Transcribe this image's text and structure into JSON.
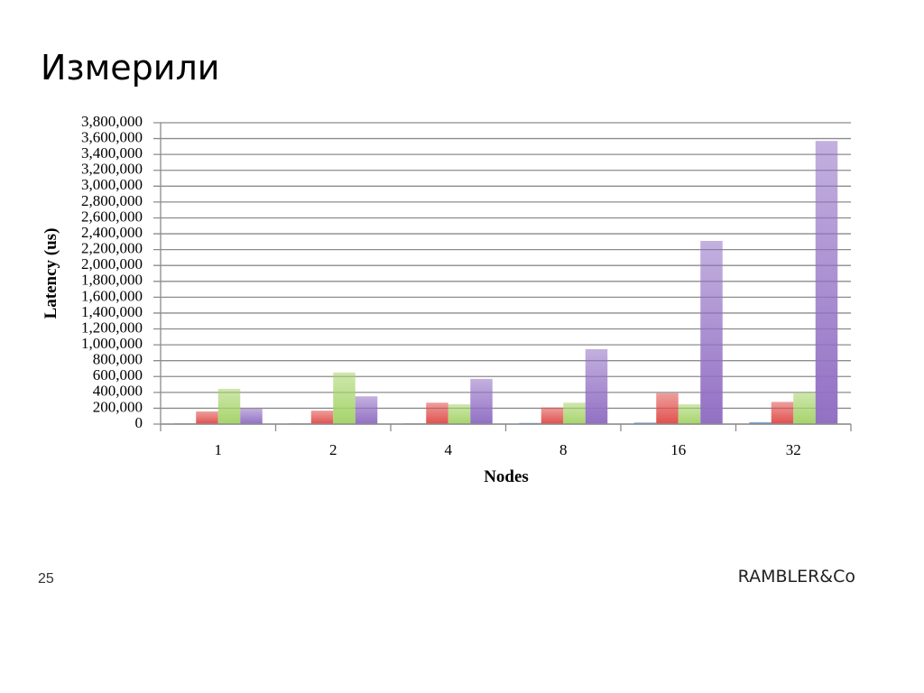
{
  "slide": {
    "title": "Измерили",
    "page_number": "25",
    "logo": "RAMBLER&Co"
  },
  "chart_data": {
    "type": "bar",
    "x_label": "Nodes",
    "y_label": "Latency (us)",
    "categories": [
      "1",
      "2",
      "4",
      "8",
      "16",
      "32"
    ],
    "series": [
      {
        "color": "#4f81bd",
        "values": [
          10000,
          10000,
          10000,
          15000,
          20000,
          25000
        ]
      },
      {
        "color": "#e0504d",
        "values": [
          160000,
          170000,
          270000,
          210000,
          390000,
          280000
        ]
      },
      {
        "color": "#a6d46a",
        "values": [
          445000,
          650000,
          250000,
          270000,
          250000,
          400000
        ]
      },
      {
        "color": "#9270c4",
        "values": [
          195000,
          350000,
          570000,
          945000,
          2310000,
          3570000
        ]
      }
    ],
    "ylim": [
      0,
      3800000
    ],
    "yticks": [
      0,
      {
        "value": 200000,
        "label": "200,000"
      },
      {
        "value": 400000,
        "label": "400,000"
      },
      {
        "value": 600000,
        "label": "600,000"
      },
      {
        "value": 800000,
        "label": "800,000"
      },
      {
        "value": 1000000,
        "label": "1,000,000"
      },
      {
        "value": 1200000,
        "label": "1,200,000"
      },
      {
        "value": 1400000,
        "label": "1,400,000"
      },
      {
        "value": 1600000,
        "label": "1,600,000"
      },
      {
        "value": 1800000,
        "label": "1,800,000"
      },
      {
        "value": 2000000,
        "label": "2,000,000"
      },
      {
        "value": 2200000,
        "label": "2,200,000"
      },
      {
        "value": 2400000,
        "label": "2,400,000"
      },
      {
        "value": 2600000,
        "label": "2,600,000"
      },
      {
        "value": 2800000,
        "label": "2,800,000"
      },
      {
        "value": 3000000,
        "label": "3,000,000"
      },
      {
        "value": 3200000,
        "label": "3,200,000"
      },
      {
        "value": 3400000,
        "label": "3,400,000"
      },
      {
        "value": 3600000,
        "label": "3,600,000"
      },
      {
        "value": 3800000,
        "label": "3,800,000"
      }
    ],
    "grid": true
  }
}
